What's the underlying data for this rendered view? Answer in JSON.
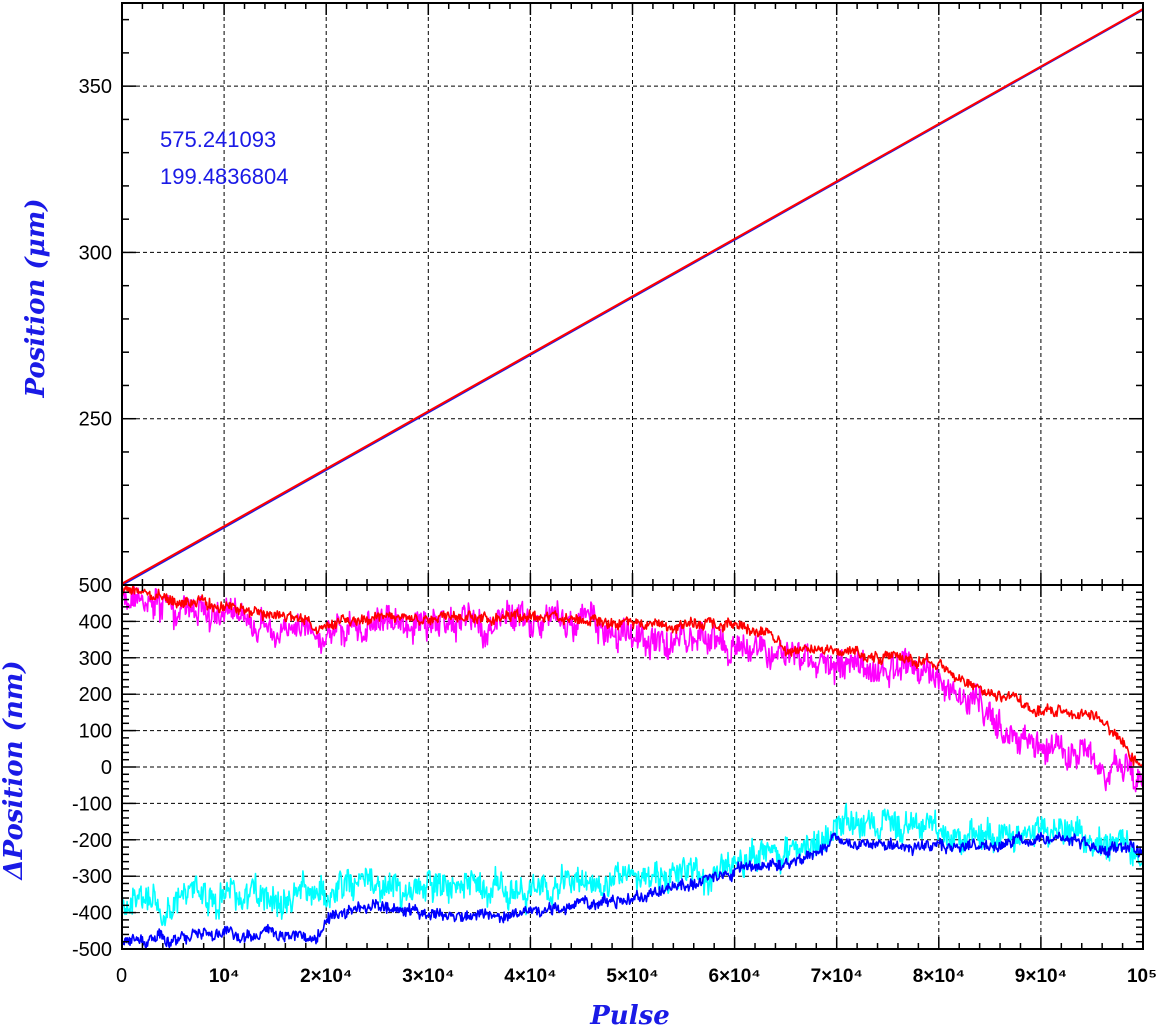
{
  "colors": {
    "annotation": "#1a1ae6",
    "axis_title": "#1a1ae6",
    "top_blue": "#1a1ae6",
    "top_red": "#ff0000",
    "bottom_magenta": "#ff00ff",
    "bottom_red": "#ff0000",
    "bottom_cyan": "#00ffff",
    "bottom_blue": "#0000ff"
  },
  "chart_data": [
    {
      "type": "line",
      "title": "",
      "xlabel": "",
      "ylabel": "Position (μm)",
      "xlim": [
        0,
        100000
      ],
      "ylim": [
        200,
        375
      ],
      "grid": true,
      "x_ticks": [
        10000,
        20000,
        30000,
        40000,
        50000,
        60000,
        70000,
        80000,
        90000
      ],
      "y_ticks": [
        {
          "value": 250,
          "label": "250"
        },
        {
          "value": 300,
          "label": "300"
        },
        {
          "value": 350,
          "label": "350"
        }
      ],
      "annotations": [
        "575.241093",
        "199.4836804"
      ],
      "series": [
        {
          "color": "#1a1ae6",
          "x": [
            0,
            100000
          ],
          "y": [
            200.0,
            373.0
          ]
        },
        {
          "color": "#ff0000",
          "x": [
            0,
            100000
          ],
          "y": [
            200.4,
            373.2
          ]
        }
      ]
    },
    {
      "type": "line",
      "title": "",
      "xlabel": "Pulse",
      "ylabel": "ΔPosition (nm)",
      "xlim": [
        0,
        100000
      ],
      "ylim": [
        -500,
        500
      ],
      "grid": true,
      "x_ticks": [
        {
          "value": 0,
          "label": "0"
        },
        {
          "value": 10000,
          "label": "10⁴"
        },
        {
          "value": 20000,
          "label": "2×10⁴"
        },
        {
          "value": 30000,
          "label": "3×10⁴"
        },
        {
          "value": 40000,
          "label": "4×10⁴"
        },
        {
          "value": 50000,
          "label": "5×10⁴"
        },
        {
          "value": 60000,
          "label": "6×10⁴"
        },
        {
          "value": 70000,
          "label": "7×10⁴"
        },
        {
          "value": 80000,
          "label": "8×10⁴"
        },
        {
          "value": 90000,
          "label": "9×10⁴"
        },
        {
          "value": 100000,
          "label": "10⁵"
        }
      ],
      "y_ticks": [
        {
          "value": -500,
          "label": "-500"
        },
        {
          "value": -400,
          "label": "-400"
        },
        {
          "value": -300,
          "label": "-300"
        },
        {
          "value": -200,
          "label": "-200"
        },
        {
          "value": -100,
          "label": "-100"
        },
        {
          "value": 0,
          "label": "0"
        },
        {
          "value": 100,
          "label": "100"
        },
        {
          "value": 200,
          "label": "200"
        },
        {
          "value": 300,
          "label": "300"
        },
        {
          "value": 400,
          "label": "400"
        },
        {
          "value": 500,
          "label": "500"
        }
      ],
      "series": [
        {
          "color": "#ff00ff",
          "noise_amplitude": 55,
          "x": [
            0,
            3000,
            8000,
            12000,
            16000,
            19000,
            22000,
            26000,
            30000,
            34000,
            38000,
            42000,
            46000,
            50000,
            54000,
            58000,
            62000,
            64000,
            66000,
            70000,
            74000,
            77000,
            80000,
            84000,
            88000,
            92000,
            95000,
            98000,
            100000
          ],
          "y": [
            470,
            450,
            430,
            400,
            380,
            360,
            385,
            390,
            385,
            390,
            395,
            400,
            390,
            360,
            355,
            350,
            330,
            310,
            300,
            280,
            260,
            280,
            240,
            160,
            80,
            50,
            30,
            -20,
            -60
          ]
        },
        {
          "color": "#ff0000",
          "noise_amplitude": 20,
          "x": [
            0,
            2000,
            5000,
            10000,
            15000,
            18000,
            19000,
            21000,
            25000,
            30000,
            35000,
            40000,
            45000,
            50000,
            55000,
            60000,
            63000,
            65000,
            68000,
            72000,
            76000,
            79000,
            82000,
            86000,
            90000,
            94000,
            96000,
            98000,
            100000
          ],
          "y": [
            490,
            480,
            460,
            440,
            420,
            400,
            375,
            400,
            415,
            410,
            410,
            415,
            405,
            395,
            390,
            395,
            370,
            330,
            325,
            300,
            305,
            290,
            240,
            190,
            160,
            150,
            120,
            60,
            0
          ]
        },
        {
          "color": "#00ffff",
          "noise_amplitude": 55,
          "x": [
            0,
            5000,
            10000,
            15000,
            20000,
            22000,
            26000,
            30000,
            35000,
            40000,
            45000,
            50000,
            55000,
            60000,
            63000,
            66000,
            70000,
            75000,
            80000,
            85000,
            90000,
            95000,
            100000
          ],
          "y": [
            -380,
            -360,
            -350,
            -360,
            -330,
            -300,
            -320,
            -330,
            -340,
            -330,
            -310,
            -300,
            -280,
            -270,
            -240,
            -230,
            -170,
            -160,
            -190,
            -200,
            -170,
            -200,
            -220
          ]
        },
        {
          "color": "#0000ff",
          "noise_amplitude": 22,
          "x": [
            0,
            5000,
            10000,
            15000,
            19000,
            20000,
            23000,
            26000,
            30000,
            35000,
            40000,
            45000,
            50000,
            55000,
            60000,
            63000,
            66000,
            70000,
            75000,
            80000,
            85000,
            90000,
            95000,
            100000
          ],
          "y": [
            -480,
            -470,
            -450,
            -460,
            -470,
            -430,
            -390,
            -380,
            -400,
            -410,
            -400,
            -380,
            -360,
            -330,
            -290,
            -270,
            -260,
            -200,
            -220,
            -220,
            -220,
            -190,
            -220,
            -230
          ]
        }
      ]
    }
  ]
}
